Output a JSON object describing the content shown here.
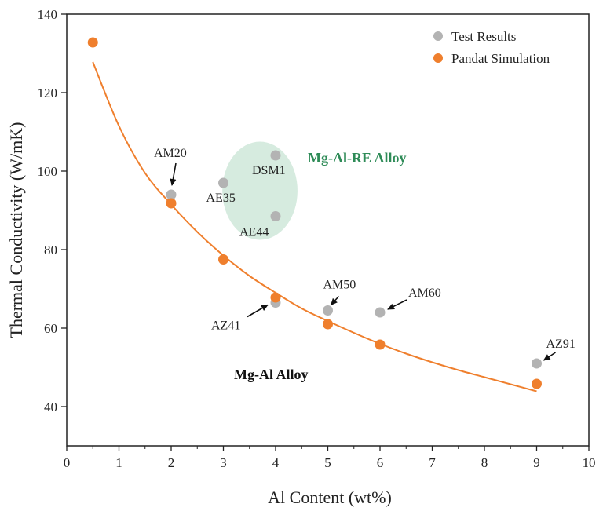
{
  "chart_data": {
    "type": "scatter",
    "xlabel": "Al Content (wt%)",
    "ylabel": "Thermal Conductivity (W/mK)",
    "xlim": [
      0,
      10
    ],
    "ylim": [
      30,
      140
    ],
    "xticks": [
      0,
      1,
      2,
      3,
      4,
      5,
      6,
      7,
      8,
      9,
      10
    ],
    "yticks": [
      40,
      60,
      80,
      100,
      120,
      140
    ],
    "grid": false,
    "legend_position": "top-right",
    "series": [
      {
        "name": "Test Results",
        "color": "#b3b3b3",
        "x": [
          2,
          3,
          4,
          4,
          4,
          5,
          6,
          9
        ],
        "y": [
          94.0,
          97.0,
          104.0,
          88.5,
          66.5,
          64.5,
          64.0,
          51.0
        ]
      },
      {
        "name": "Pandat Simulation",
        "color": "#ef7f2d",
        "x": [
          0.5,
          2,
          3,
          4,
          5,
          6,
          9
        ],
        "y": [
          132.8,
          91.8,
          77.5,
          67.8,
          61.0,
          55.8,
          45.8
        ]
      }
    ],
    "fit_curve": {
      "color": "#ef7f2d",
      "x": [
        0.5,
        1,
        1.5,
        2,
        2.5,
        3,
        3.5,
        4,
        4.5,
        5,
        5.5,
        6,
        6.5,
        7,
        7.5,
        8,
        8.5,
        9
      ],
      "y": [
        127.8,
        111.5,
        99.5,
        91.5,
        84.5,
        78.5,
        73.3,
        69.0,
        65.0,
        61.8,
        58.8,
        56.0,
        53.5,
        51.3,
        49.3,
        47.5,
        45.7,
        43.9
      ]
    },
    "highlight_region": {
      "label": "Mg-Al-RE Alloy",
      "label_color": "#2e8b57",
      "fill": "#cfe8d9",
      "center": [
        3.7,
        95
      ],
      "radius_x": 0.72,
      "radius_y": 12.5
    },
    "region_label_2": "Mg-Al Alloy",
    "annotations": [
      {
        "text": "AM20",
        "x": 2,
        "y": 94.0,
        "arrow": true
      },
      {
        "text": "AE35",
        "x": 3,
        "y": 97.0,
        "arrow": false
      },
      {
        "text": "DSM1",
        "x": 4,
        "y": 104.0,
        "arrow": false
      },
      {
        "text": "AE44",
        "x": 4,
        "y": 88.5,
        "arrow": false
      },
      {
        "text": "AZ41",
        "x": 4,
        "y": 66.5,
        "arrow": true
      },
      {
        "text": "AM50",
        "x": 5,
        "y": 64.5,
        "arrow": true
      },
      {
        "text": "AM60",
        "x": 6,
        "y": 64.0,
        "arrow": true
      },
      {
        "text": "AZ91",
        "x": 9,
        "y": 51.0,
        "arrow": true
      }
    ]
  }
}
